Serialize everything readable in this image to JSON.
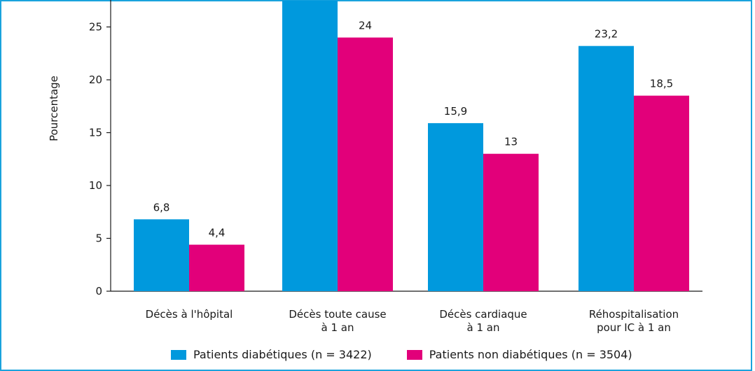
{
  "chart_data": {
    "type": "bar",
    "ylabel": "Pourcentage",
    "ylim": [
      0,
      28
    ],
    "yticks": [
      0,
      5,
      10,
      15,
      20,
      25
    ],
    "categories": [
      [
        "Décès à l'hôpital"
      ],
      [
        "Décès toute cause",
        "à 1 an"
      ],
      [
        "Décès cardiaque",
        "à 1 an"
      ],
      [
        "Réhospitalisation",
        "pour IC à 1 an"
      ]
    ],
    "series": [
      {
        "name": "Patients diabétiques (n = 3422)",
        "color": "#0099dd",
        "values": [
          6.8,
          27.5,
          15.9,
          23.2
        ],
        "labels": [
          "6,8",
          "",
          "15,9",
          "23,2"
        ]
      },
      {
        "name": "Patients non diabétiques (n = 3504)",
        "color": "#e2007a",
        "values": [
          4.4,
          24,
          13,
          18.5
        ],
        "labels": [
          "4,4",
          "24",
          "13",
          "18,5"
        ]
      }
    ],
    "grid": false,
    "legend_position": "bottom"
  }
}
